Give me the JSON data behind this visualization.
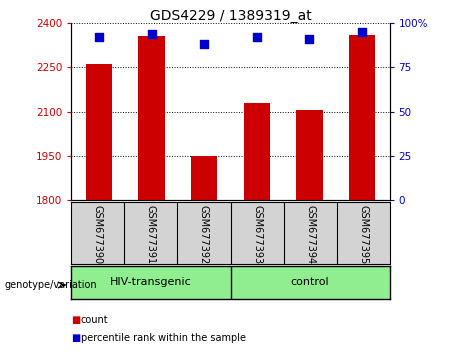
{
  "title": "GDS4229 / 1389319_at",
  "samples": [
    "GSM677390",
    "GSM677391",
    "GSM677392",
    "GSM677393",
    "GSM677394",
    "GSM677395"
  ],
  "count_values": [
    2260,
    2355,
    1950,
    2130,
    2105,
    2360
  ],
  "percentile_values": [
    92,
    94,
    88,
    92,
    91,
    95
  ],
  "ylim_left": [
    1800,
    2400
  ],
  "ylim_right": [
    0,
    100
  ],
  "yticks_left": [
    1800,
    1950,
    2100,
    2250,
    2400
  ],
  "yticks_right": [
    0,
    25,
    50,
    75,
    100
  ],
  "groups": [
    {
      "label": "HIV-transgenic"
    },
    {
      "label": "control"
    }
  ],
  "bar_color": "#CC0000",
  "bar_width": 0.5,
  "marker_color": "#0000CC",
  "marker_size": 36,
  "left_tick_color": "#CC0000",
  "right_tick_color": "#0000CC",
  "background_xlabel": "#D3D3D3",
  "background_group": "#90EE90",
  "group_border_color": "#000000",
  "xlabel_border_color": "#000000",
  "title_fontsize": 10,
  "tick_fontsize": 7.5,
  "label_fontsize": 7,
  "group_fontsize": 8
}
